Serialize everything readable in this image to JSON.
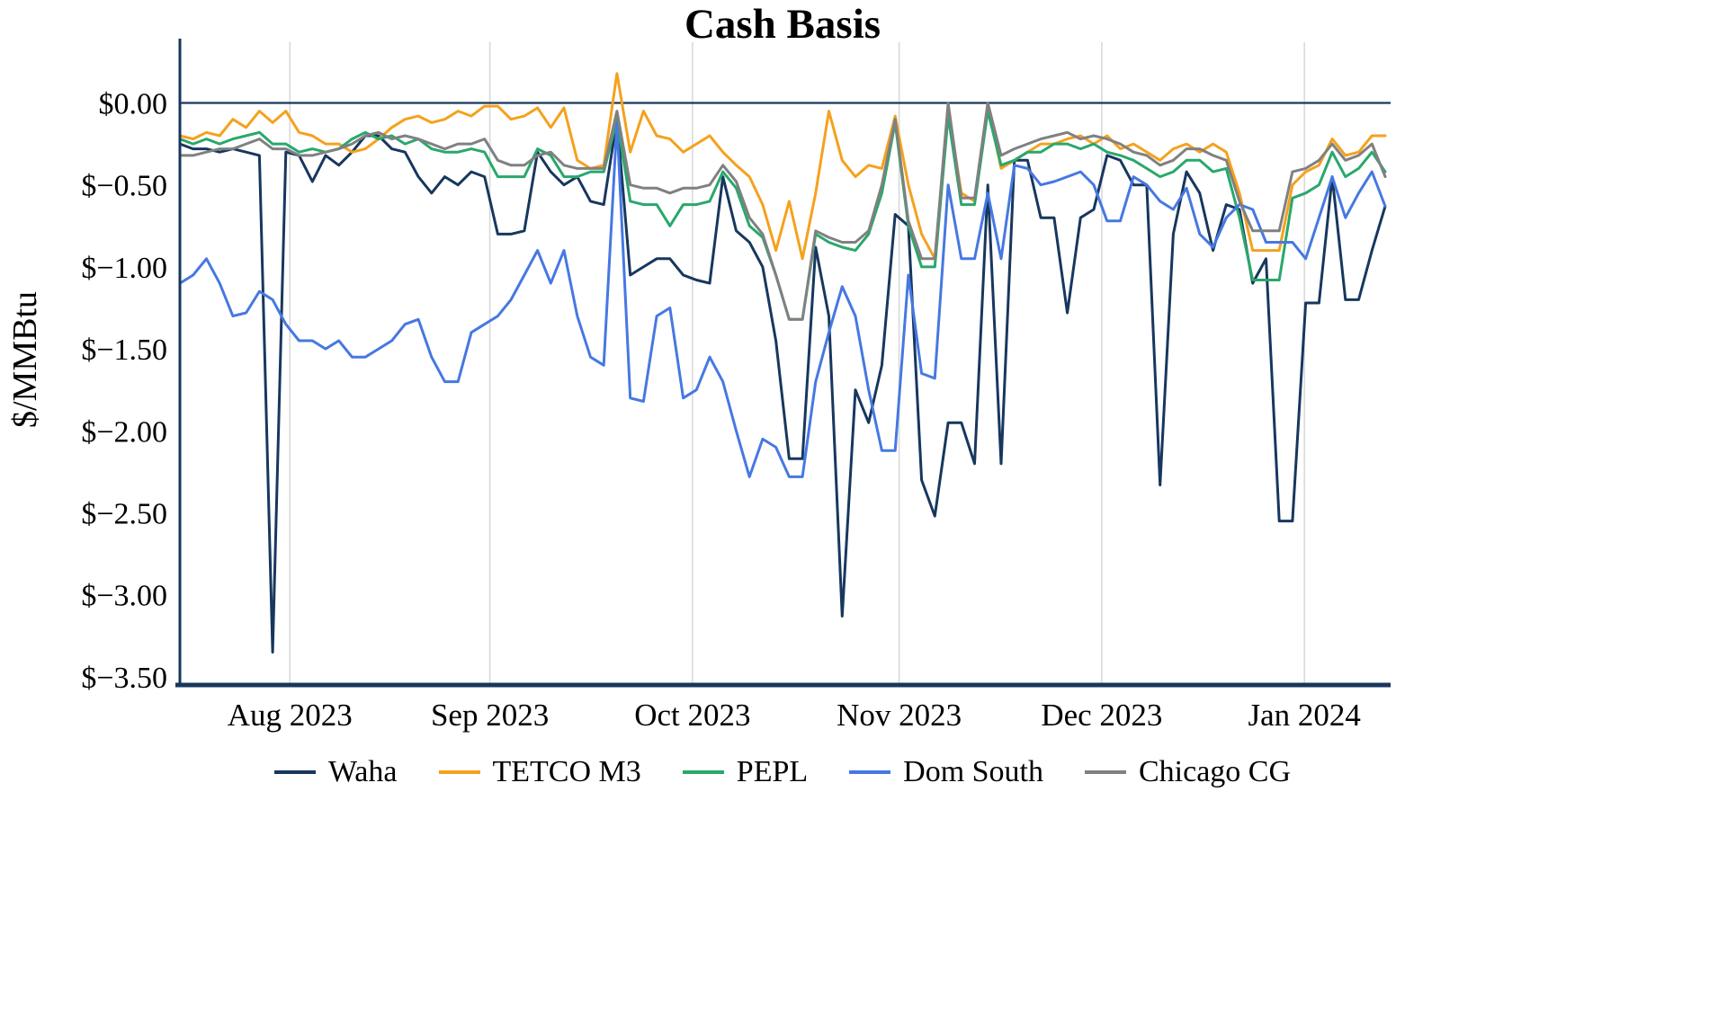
{
  "chart_data": {
    "type": "line",
    "title": "Cash Basis",
    "xlabel": "",
    "ylabel": "$/MMBtu",
    "ylim": [
      -3.55,
      0.37
    ],
    "y_tick_labels": [
      "$0.00",
      "$−0.50",
      "$−1.00",
      "$−1.50",
      "$−2.00",
      "$−2.50",
      "$−3.00",
      "$−3.50"
    ],
    "y_tick_values": [
      0,
      -0.5,
      -1.0,
      -1.5,
      -2.0,
      -2.5,
      -3.0,
      -3.5
    ],
    "x_tick_labels": [
      "Aug 2023",
      "Sep 2023",
      "Oct 2023",
      "Nov 2023",
      "Dec 2023",
      "Jan 2024"
    ],
    "x_tick_positions": [
      8.3,
      23.4,
      38.7,
      54.3,
      69.6,
      84.9
    ],
    "x_description": "Daily cash basis from mid-July 2023 to mid-January 2024, sampled approximately every 2 days (92 points per series)",
    "grid": "vertical-month-gridlines",
    "zero_line": true,
    "legend_position": "bottom",
    "colors": {
      "axis": "#17375E",
      "grid": "#d9d9d9",
      "text": "#000000"
    },
    "series": [
      {
        "name": "Waha",
        "color": "#17375E",
        "values": [
          -0.25,
          -0.28,
          -0.28,
          -0.3,
          -0.28,
          -0.3,
          -0.32,
          -3.35,
          -0.3,
          -0.32,
          -0.48,
          -0.32,
          -0.38,
          -0.3,
          -0.2,
          -0.2,
          -0.28,
          -0.3,
          -0.45,
          -0.55,
          -0.45,
          -0.5,
          -0.42,
          -0.45,
          -0.8,
          -0.8,
          -0.78,
          -0.3,
          -0.42,
          -0.5,
          -0.45,
          -0.6,
          -0.62,
          -0.1,
          -1.05,
          -1.0,
          -0.95,
          -0.95,
          -1.05,
          -1.08,
          -1.1,
          -0.45,
          -0.78,
          -0.85,
          -1.0,
          -1.45,
          -2.17,
          -2.17,
          -0.88,
          -1.3,
          -3.13,
          -1.75,
          -1.95,
          -1.6,
          -0.68,
          -0.75,
          -2.3,
          -2.52,
          -1.95,
          -1.95,
          -2.2,
          -0.5,
          -2.2,
          -0.35,
          -0.35,
          -0.7,
          -0.7,
          -1.28,
          -0.7,
          -0.65,
          -0.32,
          -0.35,
          -0.5,
          -0.5,
          -2.33,
          -0.8,
          -0.42,
          -0.55,
          -0.9,
          -0.62,
          -0.65,
          -1.1,
          -0.95,
          -2.55,
          -2.55,
          -1.22,
          -1.22,
          -0.45,
          -1.2,
          -1.2,
          -0.9,
          -0.63
        ]
      },
      {
        "name": "TETCO M3",
        "color": "#F5A11D",
        "values": [
          -0.2,
          -0.22,
          -0.18,
          -0.2,
          -0.1,
          -0.15,
          -0.05,
          -0.12,
          -0.05,
          -0.18,
          -0.2,
          -0.25,
          -0.25,
          -0.3,
          -0.28,
          -0.22,
          -0.15,
          -0.1,
          -0.08,
          -0.12,
          -0.1,
          -0.05,
          -0.08,
          -0.02,
          -0.02,
          -0.1,
          -0.08,
          -0.03,
          -0.15,
          -0.03,
          -0.35,
          -0.4,
          -0.38,
          0.18,
          -0.3,
          -0.05,
          -0.2,
          -0.22,
          -0.3,
          -0.25,
          -0.2,
          -0.3,
          -0.38,
          -0.45,
          -0.62,
          -0.9,
          -0.6,
          -0.95,
          -0.55,
          -0.05,
          -0.35,
          -0.45,
          -0.38,
          -0.4,
          -0.08,
          -0.5,
          -0.8,
          -0.95,
          -0.05,
          -0.55,
          -0.6,
          -0.02,
          -0.4,
          -0.35,
          -0.3,
          -0.25,
          -0.25,
          -0.22,
          -0.2,
          -0.25,
          -0.2,
          -0.28,
          -0.25,
          -0.3,
          -0.35,
          -0.28,
          -0.25,
          -0.3,
          -0.25,
          -0.3,
          -0.55,
          -0.9,
          -0.9,
          -0.9,
          -0.5,
          -0.42,
          -0.38,
          -0.22,
          -0.32,
          -0.3,
          -0.2,
          -0.2
        ]
      },
      {
        "name": "PEPL",
        "color": "#29A86B",
        "values": [
          -0.22,
          -0.25,
          -0.22,
          -0.25,
          -0.22,
          -0.2,
          -0.18,
          -0.25,
          -0.25,
          -0.3,
          -0.28,
          -0.3,
          -0.28,
          -0.22,
          -0.18,
          -0.22,
          -0.2,
          -0.25,
          -0.22,
          -0.28,
          -0.3,
          -0.3,
          -0.28,
          -0.3,
          -0.45,
          -0.45,
          -0.45,
          -0.28,
          -0.32,
          -0.45,
          -0.45,
          -0.42,
          -0.42,
          -0.1,
          -0.6,
          -0.62,
          -0.62,
          -0.75,
          -0.62,
          -0.62,
          -0.6,
          -0.42,
          -0.52,
          -0.75,
          -0.82,
          -1.05,
          -1.32,
          -1.32,
          -0.8,
          -0.85,
          -0.88,
          -0.9,
          -0.8,
          -0.55,
          -0.12,
          -0.75,
          -1.0,
          -1.0,
          -0.08,
          -0.62,
          -0.62,
          -0.05,
          -0.38,
          -0.35,
          -0.3,
          -0.3,
          -0.25,
          -0.25,
          -0.28,
          -0.25,
          -0.3,
          -0.32,
          -0.35,
          -0.4,
          -0.45,
          -0.42,
          -0.35,
          -0.35,
          -0.42,
          -0.4,
          -0.7,
          -1.08,
          -1.08,
          -1.08,
          -0.58,
          -0.55,
          -0.5,
          -0.3,
          -0.45,
          -0.4,
          -0.3,
          -0.42
        ]
      },
      {
        "name": "Dom South",
        "color": "#4678E2",
        "values": [
          -1.1,
          -1.05,
          -0.95,
          -1.1,
          -1.3,
          -1.28,
          -1.15,
          -1.2,
          -1.35,
          -1.45,
          -1.45,
          -1.5,
          -1.45,
          -1.55,
          -1.55,
          -1.5,
          -1.45,
          -1.35,
          -1.32,
          -1.55,
          -1.7,
          -1.7,
          -1.4,
          -1.35,
          -1.3,
          -1.2,
          -1.05,
          -0.9,
          -1.1,
          -0.9,
          -1.3,
          -1.55,
          -1.6,
          -0.12,
          -1.8,
          -1.82,
          -1.3,
          -1.25,
          -1.8,
          -1.75,
          -1.55,
          -1.7,
          -2.0,
          -2.28,
          -2.05,
          -2.1,
          -2.28,
          -2.28,
          -1.7,
          -1.4,
          -1.12,
          -1.3,
          -1.75,
          -2.12,
          -2.12,
          -1.05,
          -1.65,
          -1.68,
          -0.5,
          -0.95,
          -0.95,
          -0.55,
          -0.95,
          -0.38,
          -0.4,
          -0.5,
          -0.48,
          -0.45,
          -0.42,
          -0.5,
          -0.72,
          -0.72,
          -0.45,
          -0.5,
          -0.6,
          -0.65,
          -0.52,
          -0.8,
          -0.88,
          -0.7,
          -0.62,
          -0.65,
          -0.85,
          -0.85,
          -0.85,
          -0.95,
          -0.7,
          -0.45,
          -0.7,
          -0.55,
          -0.42,
          -0.63
        ]
      },
      {
        "name": "Chicago CG",
        "color": "#808080",
        "values": [
          -0.32,
          -0.32,
          -0.3,
          -0.28,
          -0.28,
          -0.25,
          -0.22,
          -0.28,
          -0.28,
          -0.32,
          -0.32,
          -0.3,
          -0.28,
          -0.25,
          -0.2,
          -0.18,
          -0.22,
          -0.2,
          -0.22,
          -0.25,
          -0.28,
          -0.25,
          -0.25,
          -0.22,
          -0.35,
          -0.38,
          -0.38,
          -0.32,
          -0.3,
          -0.38,
          -0.4,
          -0.4,
          -0.4,
          -0.05,
          -0.5,
          -0.52,
          -0.52,
          -0.55,
          -0.52,
          -0.52,
          -0.5,
          -0.38,
          -0.48,
          -0.7,
          -0.8,
          -1.05,
          -1.32,
          -1.32,
          -0.78,
          -0.82,
          -0.85,
          -0.85,
          -0.78,
          -0.5,
          -0.1,
          -0.72,
          -0.95,
          -0.95,
          0.0,
          -0.58,
          -0.58,
          0.0,
          -0.32,
          -0.28,
          -0.25,
          -0.22,
          -0.2,
          -0.18,
          -0.22,
          -0.2,
          -0.22,
          -0.25,
          -0.3,
          -0.32,
          -0.38,
          -0.35,
          -0.28,
          -0.28,
          -0.32,
          -0.35,
          -0.6,
          -0.78,
          -0.78,
          -0.78,
          -0.42,
          -0.4,
          -0.35,
          -0.25,
          -0.35,
          -0.32,
          -0.25,
          -0.45
        ]
      }
    ]
  }
}
